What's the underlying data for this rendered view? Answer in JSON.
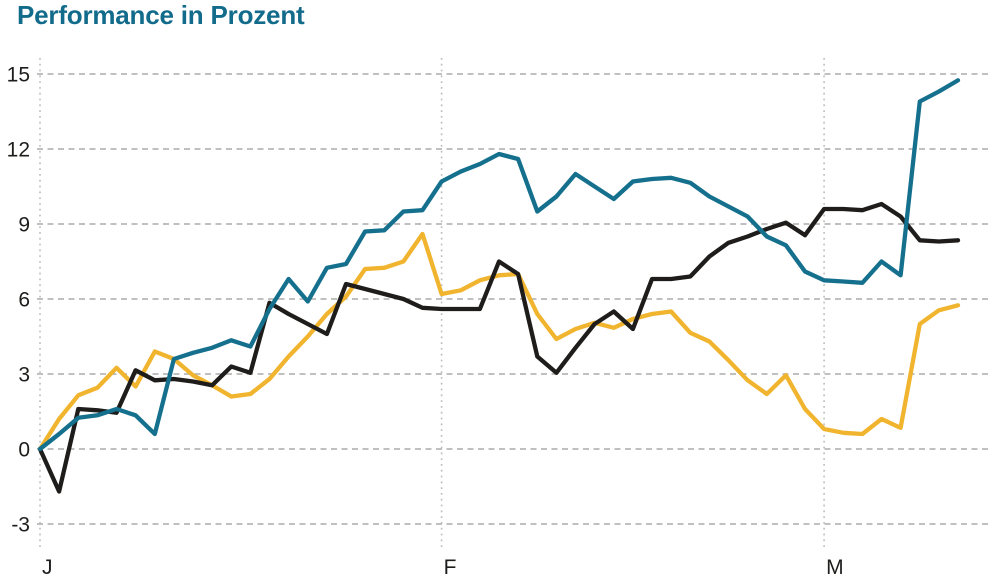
{
  "title": "Performance in Prozent",
  "chart_data": {
    "type": "line",
    "title": "Performance in Prozent",
    "legend": "none",
    "grid": {
      "horizontal": "dashed",
      "vertical_month_lines": "dotted",
      "grid_color": "#ababab",
      "month_line_color": "#bdbdbd"
    },
    "x_axis": {
      "label": "",
      "tick_labels": [
        "J",
        "F",
        "M"
      ],
      "tick_indices": [
        0,
        21,
        41
      ],
      "n_points": 49
    },
    "y_axis": {
      "label": "",
      "unit": "Prozent",
      "min": -3,
      "max": 15,
      "ticks": [
        15,
        12,
        9,
        6,
        3,
        0,
        -3
      ],
      "tick_color": "#1d1d1b"
    },
    "series": [
      {
        "name": "teal",
        "color": "#15708e",
        "values": [
          0,
          0.6,
          1.25,
          1.35,
          1.6,
          1.35,
          0.6,
          3.6,
          3.85,
          4.05,
          4.35,
          4.1,
          5.6,
          6.8,
          5.9,
          7.25,
          7.4,
          8.7,
          8.75,
          9.5,
          9.55,
          10.7,
          11.1,
          11.4,
          11.8,
          11.6,
          9.5,
          10.1,
          11.0,
          10.5,
          10.0,
          10.7,
          10.8,
          10.85,
          10.65,
          10.1,
          9.7,
          9.3,
          8.5,
          8.15,
          7.1,
          6.75,
          6.7,
          6.65,
          7.5,
          6.95,
          13.9,
          14.3,
          14.75
        ]
      },
      {
        "name": "black",
        "color": "#1e1d1b",
        "values": [
          0,
          -1.7,
          1.6,
          1.55,
          1.45,
          3.15,
          2.75,
          2.8,
          2.7,
          2.55,
          3.3,
          3.05,
          5.85,
          5.4,
          5.0,
          4.6,
          6.6,
          6.4,
          6.2,
          6.0,
          5.65,
          5.6,
          5.6,
          5.6,
          7.5,
          7.0,
          3.7,
          3.05,
          4.05,
          5.0,
          5.5,
          4.8,
          6.8,
          6.8,
          6.9,
          7.7,
          8.25,
          8.5,
          8.8,
          9.05,
          8.55,
          9.6,
          9.6,
          9.55,
          9.8,
          9.3,
          8.35,
          8.3,
          8.35
        ]
      },
      {
        "name": "yellow",
        "color": "#f1b42e",
        "values": [
          0,
          1.2,
          2.15,
          2.45,
          3.25,
          2.5,
          3.9,
          3.6,
          2.95,
          2.55,
          2.1,
          2.2,
          2.8,
          3.7,
          4.5,
          5.4,
          6.1,
          7.2,
          7.25,
          7.5,
          8.6,
          6.2,
          6.35,
          6.75,
          6.95,
          7.0,
          5.4,
          4.4,
          4.8,
          5.05,
          4.85,
          5.2,
          5.4,
          5.5,
          4.65,
          4.3,
          3.55,
          2.75,
          2.2,
          2.95,
          1.6,
          0.8,
          0.65,
          0.6,
          1.2,
          0.85,
          5.0,
          5.55,
          5.75
        ]
      }
    ]
  },
  "colors": {
    "title": "#136b8c",
    "background": "#ffffff"
  }
}
